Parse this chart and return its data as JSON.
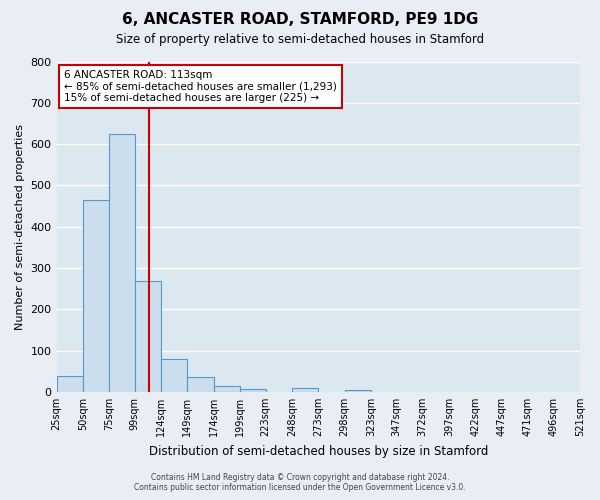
{
  "title": "6, ANCASTER ROAD, STAMFORD, PE9 1DG",
  "subtitle": "Size of property relative to semi-detached houses in Stamford",
  "bar_heights": [
    38,
    465,
    625,
    268,
    80,
    36,
    14,
    8,
    0,
    10,
    0,
    5,
    0,
    0,
    0,
    0,
    0,
    0,
    0,
    0
  ],
  "bin_edges": [
    25,
    50,
    75,
    99,
    124,
    149,
    174,
    199,
    223,
    248,
    273,
    298,
    323,
    347,
    372,
    397,
    422,
    447,
    471,
    496,
    521
  ],
  "xlabels": [
    "25sqm",
    "50sqm",
    "75sqm",
    "99sqm",
    "124sqm",
    "149sqm",
    "174sqm",
    "199sqm",
    "223sqm",
    "248sqm",
    "273sqm",
    "298sqm",
    "323sqm",
    "347sqm",
    "372sqm",
    "397sqm",
    "422sqm",
    "447sqm",
    "471sqm",
    "496sqm",
    "521sqm"
  ],
  "bar_color": "#ccdded",
  "bar_edge_color": "#5599cc",
  "ylim": [
    0,
    800
  ],
  "yticks": [
    0,
    100,
    200,
    300,
    400,
    500,
    600,
    700,
    800
  ],
  "ylabel": "Number of semi-detached properties",
  "xlabel": "Distribution of semi-detached houses by size in Stamford",
  "vline_x": 113,
  "vline_color": "#cc0000",
  "annotation_title": "6 ANCASTER ROAD: 113sqm",
  "annotation_line1": "← 85% of semi-detached houses are smaller (1,293)",
  "annotation_line2": "15% of semi-detached houses are larger (225) →",
  "annotation_box_facecolor": "#ffffff",
  "annotation_box_edgecolor": "#cc0000",
  "footer1": "Contains HM Land Registry data © Crown copyright and database right 2024.",
  "footer2": "Contains public sector information licensed under the Open Government Licence v3.0.",
  "bg_color": "#e8eef4",
  "plot_bg_color": "#dce8f0",
  "grid_color": "#ffffff"
}
